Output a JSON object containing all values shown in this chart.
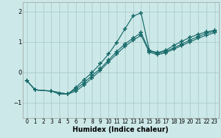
{
  "xlabel": "Humidex (Indice chaleur)",
  "ylabel": "",
  "bg_color": "#cce8e8",
  "grid_color": "#aacccc",
  "line_color": "#1a6b6b",
  "xlim": [
    -0.5,
    23.5
  ],
  "ylim": [
    -1.5,
    2.3
  ],
  "yticks": [
    -1,
    0,
    1,
    2
  ],
  "xticks": [
    0,
    1,
    2,
    3,
    4,
    5,
    6,
    7,
    8,
    9,
    10,
    11,
    12,
    13,
    14,
    15,
    16,
    17,
    18,
    19,
    20,
    21,
    22,
    23
  ],
  "line1_x": [
    0,
    1,
    3,
    4,
    5,
    6,
    7,
    8,
    9,
    10,
    11,
    12,
    13,
    14,
    15,
    16,
    17,
    18,
    19,
    20,
    21,
    22,
    23
  ],
  "line1_y": [
    -0.28,
    -0.58,
    -0.62,
    -0.72,
    -0.72,
    -0.5,
    -0.25,
    0.0,
    0.28,
    0.6,
    0.98,
    1.42,
    1.85,
    1.95,
    0.72,
    0.65,
    0.72,
    0.88,
    1.02,
    1.15,
    1.25,
    1.33,
    1.38
  ],
  "line2_x": [
    0,
    1,
    3,
    5,
    6,
    7,
    8,
    9,
    10,
    11,
    12,
    13,
    14,
    15,
    16,
    17,
    18,
    19,
    20,
    21,
    22,
    23
  ],
  "line2_y": [
    -0.28,
    -0.58,
    -0.62,
    -0.72,
    -0.55,
    -0.35,
    -0.1,
    0.12,
    0.4,
    0.68,
    0.93,
    1.12,
    1.3,
    0.7,
    0.62,
    0.68,
    0.8,
    0.93,
    1.06,
    1.18,
    1.28,
    1.35
  ],
  "line3_x": [
    0,
    1,
    3,
    5,
    6,
    7,
    8,
    9,
    10,
    11,
    12,
    13,
    14,
    15,
    16,
    17,
    18,
    19,
    20,
    21,
    22,
    23
  ],
  "line3_y": [
    -0.28,
    -0.58,
    -0.62,
    -0.72,
    -0.62,
    -0.42,
    -0.18,
    0.06,
    0.34,
    0.6,
    0.85,
    1.05,
    1.22,
    0.66,
    0.58,
    0.64,
    0.76,
    0.88,
    1.0,
    1.12,
    1.22,
    1.3
  ]
}
